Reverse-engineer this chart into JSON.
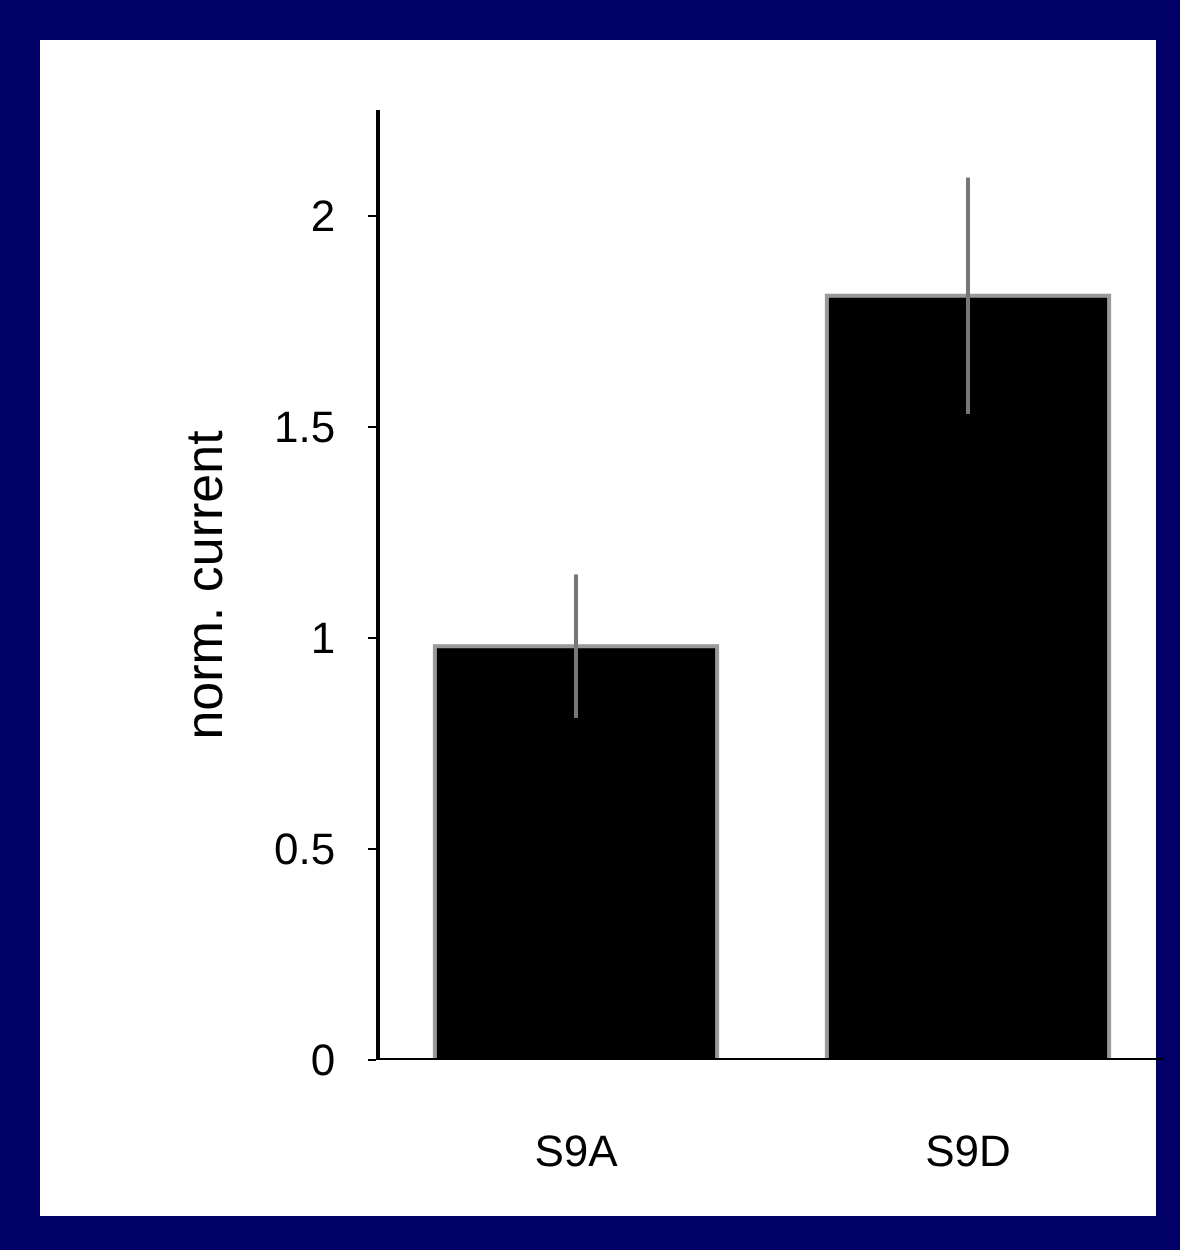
{
  "chart_data": {
    "type": "bar",
    "ylabel": "norm. current",
    "categories": [
      "S9A",
      "S9D"
    ],
    "values": [
      0.98,
      1.81
    ],
    "errors": [
      0.17,
      0.28
    ],
    "color": "#000000",
    "ylim": [
      0,
      2.25
    ],
    "yticks": [
      0,
      0.5,
      1,
      1.5,
      2
    ],
    "grid": false
  }
}
